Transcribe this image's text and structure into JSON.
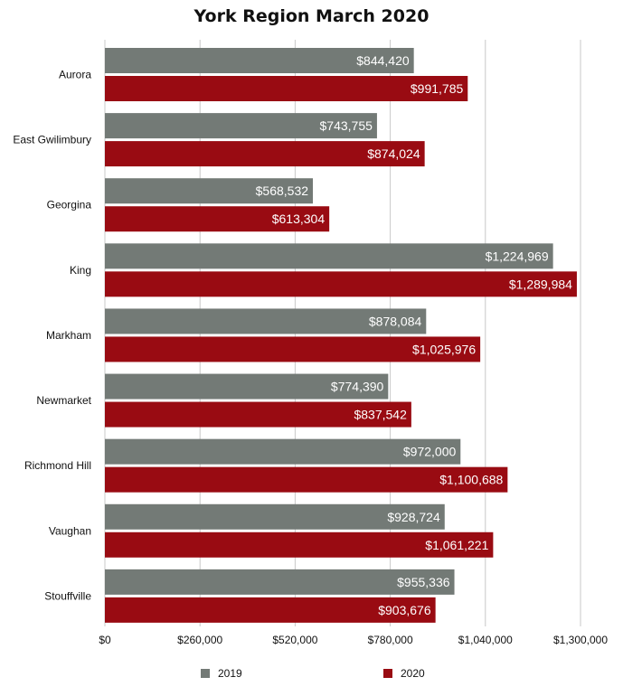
{
  "chart_data": {
    "type": "bar",
    "orientation": "horizontal",
    "title": "York Region March 2020",
    "categories": [
      "Aurora",
      "East Gwilimbury",
      "Georgina",
      "King",
      "Markham",
      "Newmarket",
      "Richmond Hill",
      "Vaughan",
      "Stouffville"
    ],
    "series": [
      {
        "name": "2019",
        "color": "#737a76",
        "values": [
          844420,
          743755,
          568532,
          1224969,
          878084,
          774390,
          972000,
          928724,
          955336
        ],
        "labels": [
          "$844,420",
          "$743,755",
          "$568,532",
          "$1,224,969",
          "$878,084",
          "$774,390",
          "$972,000",
          "$928,724",
          "$955,336"
        ]
      },
      {
        "name": "2020",
        "color": "#990b12",
        "values": [
          991785,
          874024,
          613304,
          1289984,
          1025976,
          837542,
          1100688,
          1061221,
          903676
        ],
        "labels": [
          "$991,785",
          "$874,024",
          "$613,304",
          "$1,289,984",
          "$1,025,976",
          "$837,542",
          "$1,100,688",
          "$1,061,221",
          "$903,676"
        ]
      }
    ],
    "xlim": [
      0,
      1300000
    ],
    "xticks": [
      0,
      260000,
      520000,
      780000,
      1040000,
      1300000
    ],
    "xtick_labels": [
      "$0",
      "$260,000",
      "$520,000",
      "$780,000",
      "$1,040,000",
      "$1,300,000"
    ],
    "grid": true,
    "legend_position": "bottom"
  }
}
